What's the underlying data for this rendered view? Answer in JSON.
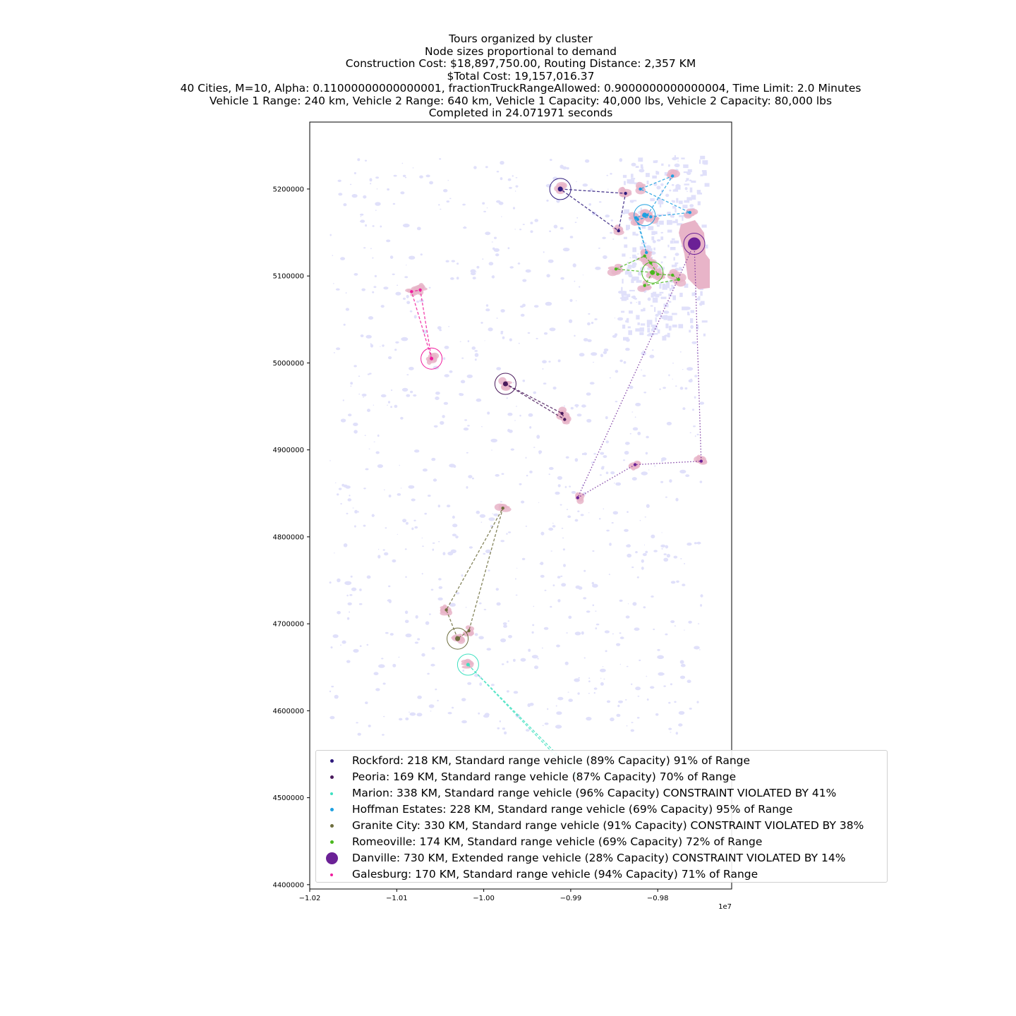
{
  "title_lines": [
    "Tours organized by cluster",
    "Node sizes proportional to demand",
    "Construction Cost: $18,897,750.00, Routing Distance: 2,357 KM",
    "$Total Cost: 19,157,016.37",
    "40 Cities, M=10, Alpha: 0.11000000000000001, fractionTruckRangeAllowed: 0.9000000000000004, Time Limit: 2.0 Minutes",
    "Vehicle 1 Range: 240 km, Vehicle 2 Range: 640 km, Vehicle 1 Capacity: 40,000 lbs, Vehicle 2 Capacity: 80,000 lbs",
    "Completed in 24.071971 seconds"
  ],
  "axes": {
    "x_ticks": [
      "−1.02",
      "−1.01",
      "−1.00",
      "−0.99",
      "−0.98"
    ],
    "x_tick_values": [
      -10200000,
      -10100000,
      -10000000,
      -9900000,
      -9800000
    ],
    "x_offset_label": "1e7",
    "y_ticks": [
      "5200000",
      "5100000",
      "5000000",
      "4900000",
      "4800000",
      "4700000",
      "4600000",
      "4500000",
      "4400000"
    ],
    "y_tick_values": [
      5200000,
      5100000,
      5000000,
      4900000,
      4800000,
      4700000,
      4600000,
      4500000,
      4400000
    ],
    "xlim": [
      -10200000,
      -9715000
    ],
    "ylim": [
      4395000,
      5277000
    ]
  },
  "colors": {
    "urban_area": "#e8b4c8",
    "land_cover": "#e0e0fa"
  },
  "clusters": [
    {
      "name": "Rockford",
      "color": "#2e1a7c",
      "line_style": "dashed",
      "marker_size": 6,
      "label": "Rockford: 218 KM, Standard range vehicle (89% Capacity) 91% of Range",
      "hub": [
        -9912000,
        5200000
      ],
      "tour": [
        [
          -9912000,
          5200000
        ],
        [
          -9837000,
          5195000
        ],
        [
          -9845000,
          5152000
        ],
        [
          -9912000,
          5200000
        ]
      ]
    },
    {
      "name": "Peoria",
      "color": "#4a1a5c",
      "line_style": "dashed",
      "marker_size": 6,
      "label": "Peoria: 169 KM, Standard range vehicle (87% Capacity) 70% of Range",
      "hub": [
        -9975000,
        4976000
      ],
      "tour": [
        [
          -9975000,
          4976000
        ],
        [
          -9910000,
          4942000
        ],
        [
          -9907000,
          4935000
        ],
        [
          -9975000,
          4976000
        ]
      ]
    },
    {
      "name": "Marion",
      "color": "#3ee0c0",
      "line_style": "dashed",
      "marker_size": 4,
      "label": "Marion: 338 KM, Standard range vehicle (96% Capacity) CONSTRAINT VIOLATED BY 41%",
      "hub": [
        -10018000,
        4653000
      ],
      "tour": [
        [
          -10018000,
          4653000
        ],
        [
          -9895000,
          4525000
        ],
        [
          -9891000,
          4525000
        ],
        [
          -10018000,
          4653000
        ]
      ]
    },
    {
      "name": "Hoffman Estates",
      "color": "#1ea0e0",
      "line_style": "dashed",
      "marker_size": 6,
      "label": "Hoffman Estates: 228 KM, Standard range vehicle (69% Capacity) 95% of Range",
      "hub": [
        -9815000,
        5170000
      ],
      "tour": [
        [
          -9815000,
          5170000
        ],
        [
          -9825000,
          5167000
        ],
        [
          -9813000,
          5127000
        ],
        [
          -9823000,
          5165000
        ],
        [
          -9808000,
          5168000
        ],
        [
          -9763000,
          5173000
        ],
        [
          -9820000,
          5200000
        ],
        [
          -9783000,
          5215000
        ],
        [
          -9812000,
          5170000
        ]
      ]
    },
    {
      "name": "Granite City",
      "color": "#6e6e3e",
      "line_style": "dashed",
      "marker_size": 6,
      "label": "Granite City: 330 KM, Standard range vehicle (91% Capacity) CONSTRAINT VIOLATED BY 38%",
      "hub": [
        -10030000,
        4683000
      ],
      "tour": [
        [
          -10030000,
          4683000
        ],
        [
          -10043000,
          4716000
        ],
        [
          -9978000,
          4833000
        ],
        [
          -10017000,
          4692000
        ],
        [
          -10030000,
          4683000
        ]
      ]
    },
    {
      "name": "Romeoville",
      "color": "#4ab81e",
      "line_style": "dashed",
      "marker_size": 6,
      "label": "Romeoville: 174 KM, Standard range vehicle (69% Capacity) 72% of Range",
      "hub": [
        -9806000,
        5104000
      ],
      "tour": [
        [
          -9806000,
          5104000
        ],
        [
          -9848000,
          5108000
        ],
        [
          -9815000,
          5123000
        ],
        [
          -9808000,
          5115000
        ],
        [
          -9800000,
          5102000
        ],
        [
          -9783000,
          5101000
        ],
        [
          -9776000,
          5096000
        ],
        [
          -9815000,
          5089000
        ],
        [
          -9806000,
          5104000
        ]
      ]
    },
    {
      "name": "Danville",
      "color": "#6b2196",
      "line_style": "dotted",
      "marker_size": 17,
      "label": "Danville: 730 KM, Extended range vehicle (28% Capacity) CONSTRAINT VIOLATED BY 14%",
      "hub": [
        -9758000,
        5137000
      ],
      "tour": [
        [
          -9758000,
          5137000
        ],
        [
          -9892000,
          4845000
        ],
        [
          -9826000,
          4883000
        ],
        [
          -9750000,
          4887000
        ],
        [
          -9758000,
          5137000
        ]
      ]
    },
    {
      "name": "Galesburg",
      "color": "#f01e9e",
      "line_style": "dashed",
      "marker_size": 4,
      "label": "Galesburg: 170 KM, Standard range vehicle (94% Capacity) 71% of Range",
      "hub": [
        -10060000,
        5005000
      ],
      "tour": [
        [
          -10060000,
          5005000
        ],
        [
          -10083000,
          5082000
        ],
        [
          -10073000,
          5084000
        ],
        [
          -10060000,
          5005000
        ]
      ]
    }
  ]
}
